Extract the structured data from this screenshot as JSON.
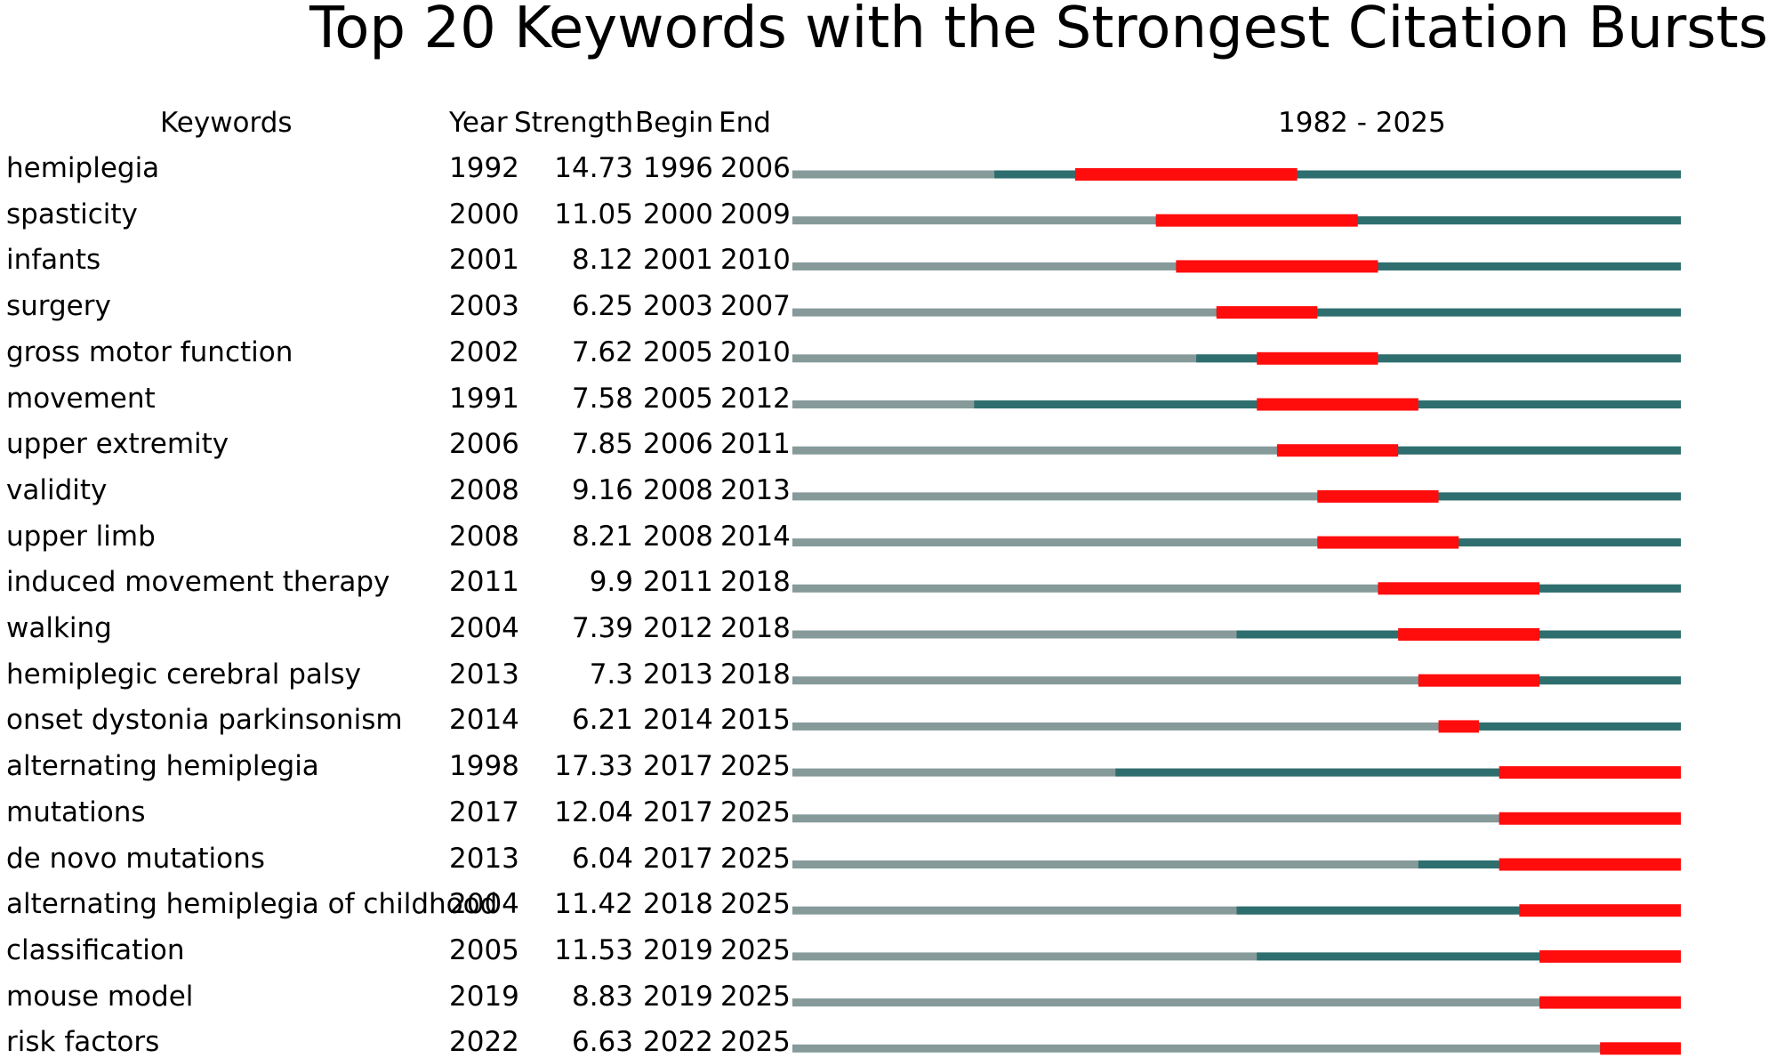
{
  "chart_data": {
    "type": "table",
    "title": "Top 20 Keywords with the Strongest Citation Bursts",
    "headers": {
      "keyword": "Keywords",
      "year": "Year",
      "strength": "Strength",
      "begin": "Begin",
      "end": "End",
      "range": "1982 - 2025"
    },
    "range_start": 1982,
    "range_end": 2025,
    "colors": {
      "before_appearance": "#869a9a",
      "after_appearance": "#2e6e6e",
      "burst": "#ff0d0d"
    },
    "rows": [
      {
        "keyword": "hemiplegia",
        "year": "1992",
        "strength": "14.73",
        "begin": "1996",
        "end": "2006"
      },
      {
        "keyword": "spasticity",
        "year": "2000",
        "strength": "11.05",
        "begin": "2000",
        "end": "2009"
      },
      {
        "keyword": "infants",
        "year": "2001",
        "strength": "8.12",
        "begin": "2001",
        "end": "2010"
      },
      {
        "keyword": "surgery",
        "year": "2003",
        "strength": "6.25",
        "begin": "2003",
        "end": "2007"
      },
      {
        "keyword": "gross motor function",
        "year": "2002",
        "strength": "7.62",
        "begin": "2005",
        "end": "2010"
      },
      {
        "keyword": "movement",
        "year": "1991",
        "strength": "7.58",
        "begin": "2005",
        "end": "2012"
      },
      {
        "keyword": "upper extremity",
        "year": "2006",
        "strength": "7.85",
        "begin": "2006",
        "end": "2011"
      },
      {
        "keyword": "validity",
        "year": "2008",
        "strength": "9.16",
        "begin": "2008",
        "end": "2013"
      },
      {
        "keyword": "upper limb",
        "year": "2008",
        "strength": "8.21",
        "begin": "2008",
        "end": "2014"
      },
      {
        "keyword": "induced movement therapy",
        "year": "2011",
        "strength": "9.9",
        "begin": "2011",
        "end": "2018"
      },
      {
        "keyword": "walking",
        "year": "2004",
        "strength": "7.39",
        "begin": "2012",
        "end": "2018"
      },
      {
        "keyword": "hemiplegic cerebral palsy",
        "year": "2013",
        "strength": "7.3",
        "begin": "2013",
        "end": "2018"
      },
      {
        "keyword": "onset dystonia parkinsonism",
        "year": "2014",
        "strength": "6.21",
        "begin": "2014",
        "end": "2015"
      },
      {
        "keyword": "alternating hemiplegia",
        "year": "1998",
        "strength": "17.33",
        "begin": "2017",
        "end": "2025"
      },
      {
        "keyword": "mutations",
        "year": "2017",
        "strength": "12.04",
        "begin": "2017",
        "end": "2025"
      },
      {
        "keyword": "de novo mutations",
        "year": "2013",
        "strength": "6.04",
        "begin": "2017",
        "end": "2025"
      },
      {
        "keyword": "alternating hemiplegia of childhood",
        "year": "2004",
        "strength": "11.42",
        "begin": "2018",
        "end": "2025"
      },
      {
        "keyword": "classification",
        "year": "2005",
        "strength": "11.53",
        "begin": "2019",
        "end": "2025"
      },
      {
        "keyword": "mouse model",
        "year": "2019",
        "strength": "8.83",
        "begin": "2019",
        "end": "2025"
      },
      {
        "keyword": "risk factors",
        "year": "2022",
        "strength": "6.63",
        "begin": "2022",
        "end": "2025"
      }
    ]
  }
}
